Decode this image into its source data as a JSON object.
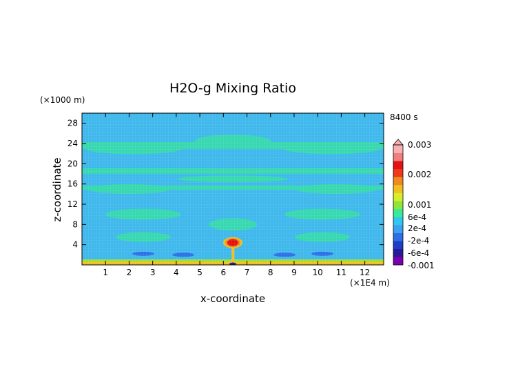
{
  "chart_data": {
    "type": "heatmap",
    "title": "H2O-g Mixing Ratio",
    "time_label": "8400 s",
    "xlabel": "x-coordinate",
    "ylabel": "z-coordinate",
    "x_unit": "(×1E4 m)",
    "y_unit": "(×1000 m)",
    "xlim": [
      0,
      12.8
    ],
    "ylim": [
      0,
      30
    ],
    "x_ticks": [
      "1",
      "2",
      "3",
      "4",
      "5",
      "6",
      "7",
      "8",
      "9",
      "10",
      "11",
      "12"
    ],
    "y_ticks": [
      "4",
      "8",
      "12",
      "16",
      "20",
      "24",
      "28"
    ],
    "colorbar": {
      "labels": [
        "0.003",
        "0.002",
        "0.001",
        "6e-4",
        "2e-4",
        "-2e-4",
        "-6e-4",
        "-0.001"
      ],
      "levels": [
        -0.001,
        -0.0008,
        -0.0006,
        -0.0004,
        -0.0002,
        0,
        0.0002,
        0.0004,
        0.0006,
        0.0008,
        0.001,
        0.0015,
        0.002,
        0.0025,
        0.003
      ],
      "colors": [
        "#7a00b0",
        "#2a1a9a",
        "#1e3fc8",
        "#2f6fe6",
        "#3ea0f0",
        "#2ec8ee",
        "#3ce89a",
        "#8ee63c",
        "#d8ec2a",
        "#f0c020",
        "#f08a20",
        "#ee3a1c",
        "#e41212",
        "#f08080",
        "#f8b0b0"
      ]
    },
    "colors": {
      "background_field": "#3fb8ec",
      "wave_band": "#37d8b0",
      "positive_anomaly": "#e41212"
    }
  }
}
